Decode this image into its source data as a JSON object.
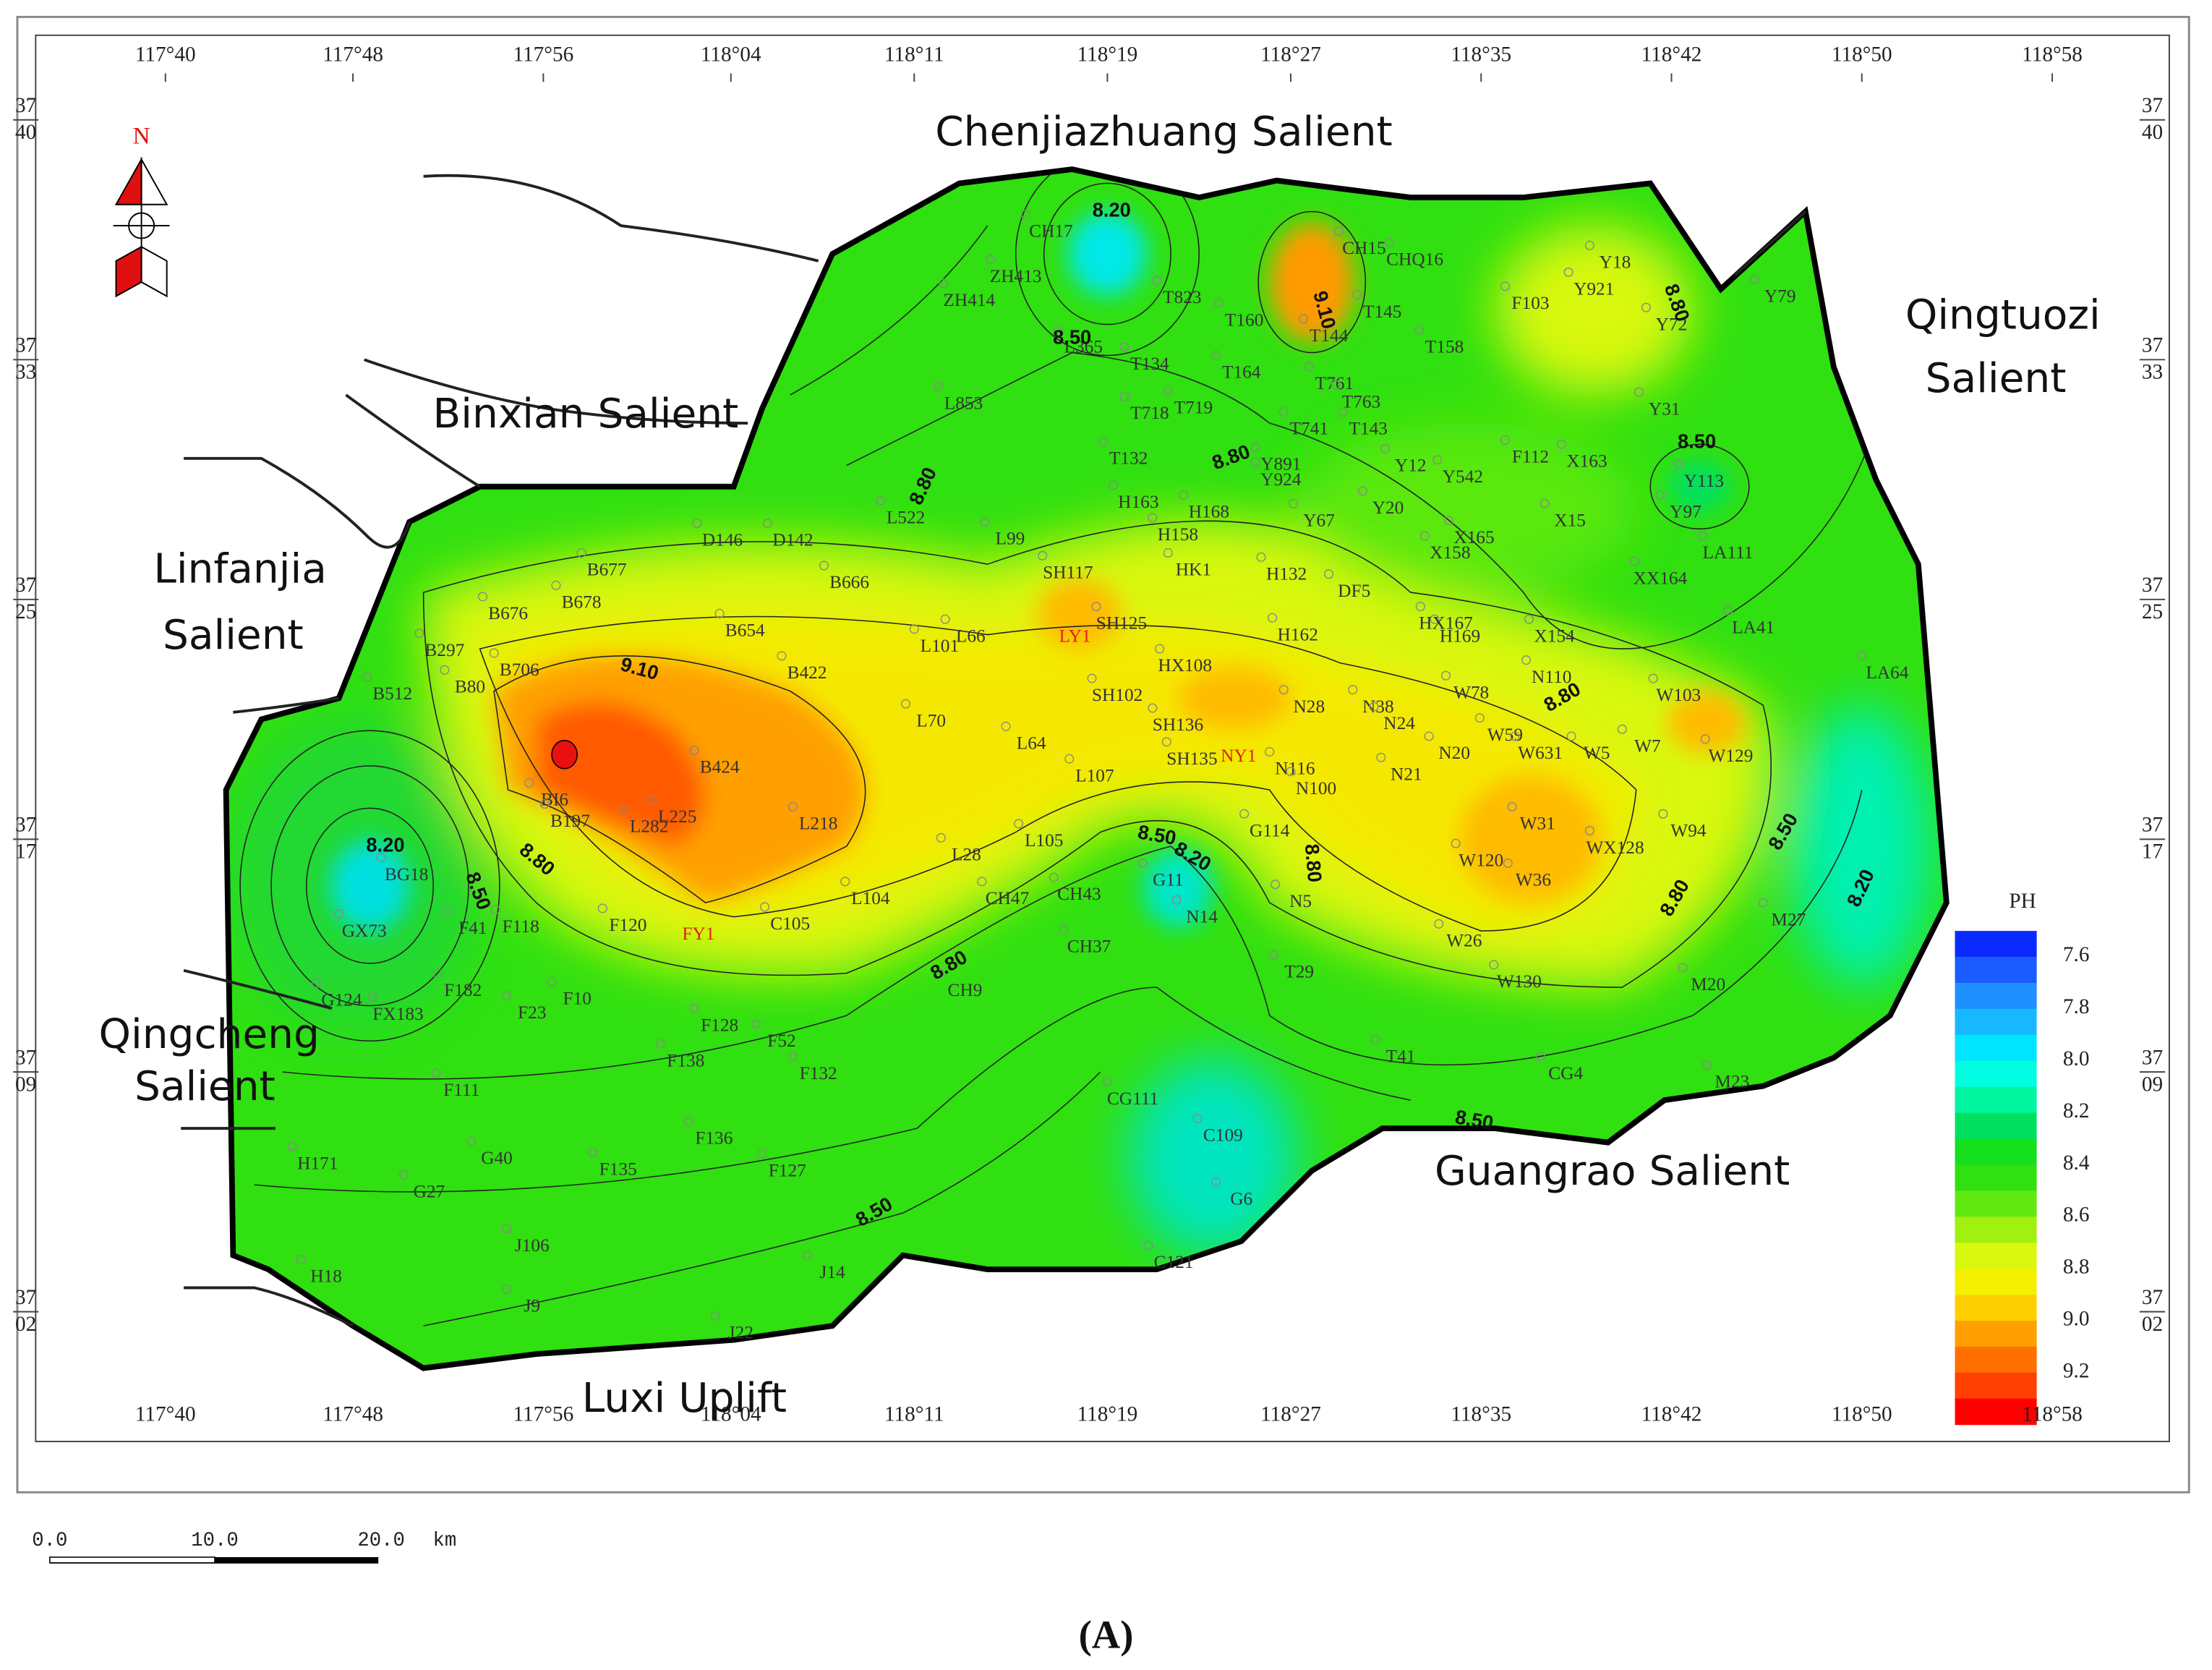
{
  "map": {
    "region_labels": [
      "Chenjiazhuang Salient",
      "Binxian Salient",
      "Linfanjia",
      "Salient",
      "Qingtuozi",
      "Salient",
      "Qingcheng",
      "Salient",
      "Guangrao Salient",
      "Luxi Uplift"
    ],
    "north": "N",
    "x_ticks": [
      "117°40",
      "117°48",
      "117°56",
      "118°04",
      "118°11",
      "118°19",
      "118°27",
      "118°35",
      "118°42",
      "118°50",
      "118°58"
    ],
    "y_ticks": [
      {
        "deg": "37",
        "min": "40"
      },
      {
        "deg": "37",
        "min": "33"
      },
      {
        "deg": "37",
        "min": "25"
      },
      {
        "deg": "37",
        "min": "17"
      },
      {
        "deg": "37",
        "min": "09"
      },
      {
        "deg": "37",
        "min": "02"
      }
    ],
    "contour_labels": [
      "8.20",
      "8.20",
      "8.20",
      "8.20",
      "8.50",
      "8.50",
      "8.50",
      "8.50",
      "8.50",
      "8.50",
      "8.50",
      "8.80",
      "8.80",
      "8.80",
      "8.80",
      "8.80",
      "8.80",
      "8.80",
      "8.80",
      "9.10",
      "9.10"
    ],
    "wells": [
      "CH17",
      "ZH413",
      "ZH414",
      "T823",
      "L365",
      "T160",
      "T144",
      "T145",
      "CH15",
      "CHQ16",
      "T158",
      "F103",
      "Y18",
      "Y921",
      "Y72",
      "Y79",
      "T134",
      "T164",
      "T761",
      "T763",
      "T718",
      "T719",
      "T741",
      "T143",
      "Y12",
      "Y542",
      "F112",
      "X163",
      "Y31",
      "L853",
      "T132",
      "Y891",
      "Y924",
      "H163",
      "H168",
      "Y67",
      "Y20",
      "X165",
      "X15",
      "Y113",
      "Y97",
      "LA111",
      "L522",
      "L99",
      "H158",
      "HK1",
      "H132",
      "DF5",
      "X158",
      "XX164",
      "LA41",
      "LA64",
      "D146",
      "D142",
      "B677",
      "B666",
      "B678",
      "B676",
      "B654",
      "B422",
      "SH117",
      "SH125",
      "L66",
      "L101",
      "H162",
      "H169",
      "HX167",
      "X154",
      "B297",
      "B80",
      "B706",
      "B512",
      "HX108",
      "N110",
      "W78",
      "W103",
      "SH102",
      "N28",
      "N38",
      "N24",
      "W59",
      "W631",
      "W5",
      "W7",
      "W129",
      "L70",
      "L64",
      "SH136",
      "N20",
      "N116",
      "N100",
      "N21",
      "SH135",
      "L107",
      "B424",
      "BI6",
      "B197",
      "L282",
      "L225",
      "L218",
      "W31",
      "WX128",
      "W94",
      "W120",
      "W36",
      "L28",
      "L105",
      "G114",
      "CH47",
      "CH43",
      "G11",
      "N5",
      "N14",
      "BG18",
      "GX73",
      "F41",
      "F118",
      "F120",
      "C105",
      "L104",
      "M27",
      "CH37",
      "CH9",
      "T29",
      "W26",
      "W130",
      "M20",
      "F182",
      "FX183",
      "G124",
      "F10",
      "F23",
      "F128",
      "F138",
      "F52",
      "F132",
      "F111",
      "T41",
      "CG4",
      "M23",
      "CG111",
      "C109",
      "F136",
      "F135",
      "F127",
      "G40",
      "H171",
      "G27",
      "G6",
      "J106",
      "H18",
      "J14",
      "C121",
      "J9",
      "J22"
    ],
    "highlight_wells": [
      "LY1",
      "NY1",
      "FY1"
    ],
    "legend": {
      "title": "PH",
      "labels": [
        "7.6",
        "7.8",
        "8.0",
        "8.2",
        "8.4",
        "8.6",
        "8.8",
        "9.0",
        "9.2"
      ]
    },
    "scale_bar": [
      "0.0",
      "10.0",
      "20.0",
      "km"
    ],
    "figure_label": "(A)"
  }
}
